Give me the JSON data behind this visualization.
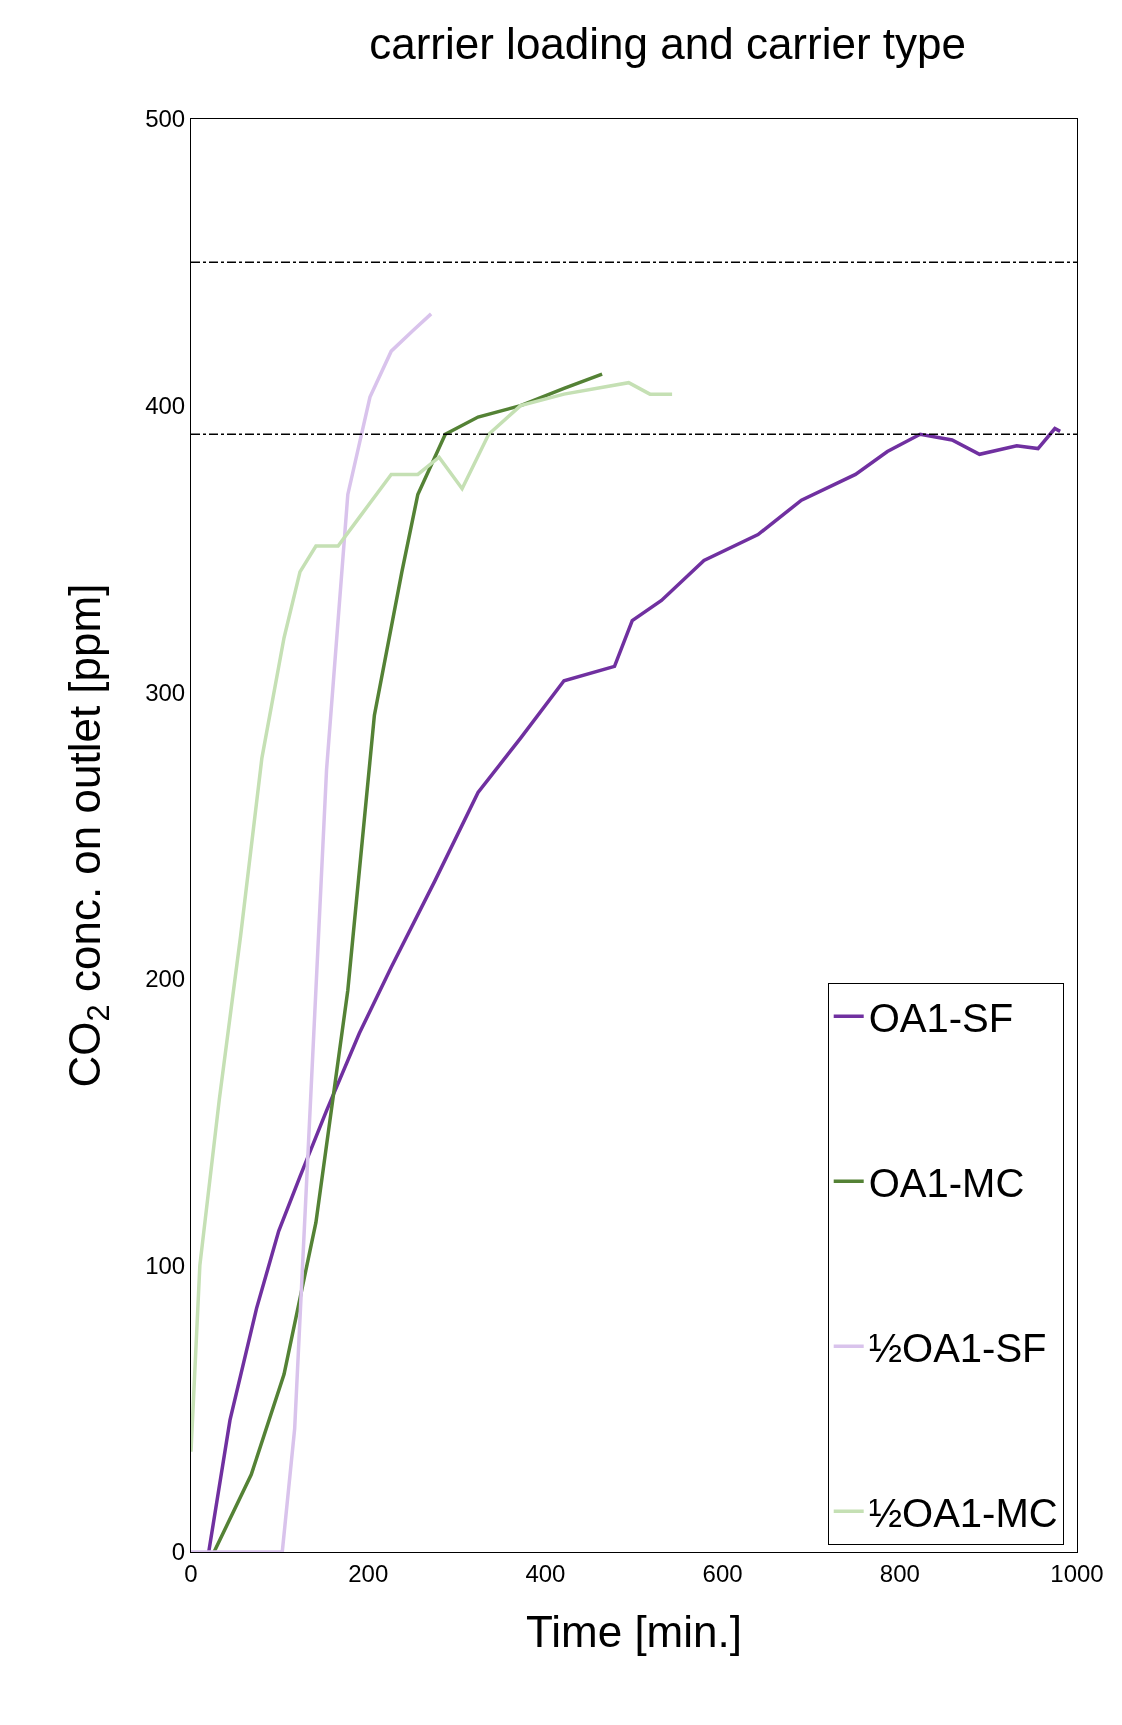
{
  "chart_data": {
    "type": "line",
    "title": "carrier loading and carrier type",
    "xlabel": "Time [min.]",
    "ylabel": "CO$_{2}$ conc. on outlet [ppm]",
    "xlim": [
      0,
      1000
    ],
    "xticks": [
      0,
      200,
      400,
      600,
      800,
      1000
    ],
    "ylim": [
      0,
      500
    ],
    "yticks": [
      0,
      100,
      200,
      300,
      400,
      500
    ],
    "grid": false,
    "legend": "bottom right",
    "marker": "none",
    "line_style": "solid",
    "ref_lines": [
      {
        "axis": "y",
        "value": 450,
        "color": "#000000",
        "line_style": "dashdot"
      },
      {
        "axis": "y",
        "value": 390,
        "color": "#000000",
        "line_style": "dashdot"
      }
    ],
    "series": [
      {
        "name": "OA1-SF",
        "color": "#7030a0",
        "x": [
          20,
          44,
          74,
          99,
          123,
          153,
          190,
          226,
          275,
          324,
          372,
          421,
          478,
          498,
          531,
          579,
          640,
          689,
          750,
          786,
          823,
          859,
          890,
          932,
          956,
          975,
          981
        ],
        "values": [
          0,
          46,
          85,
          112,
          131,
          154,
          181,
          204,
          234,
          265,
          284,
          304,
          309,
          325,
          332,
          346,
          355,
          367,
          376,
          384,
          390,
          388,
          383,
          386,
          385,
          392,
          391
        ]
      },
      {
        "name": "OA1-MC",
        "color": "#548235",
        "x": [
          26,
          68,
          105,
          141,
          177,
          207,
          238,
          256,
          287,
          324,
          372,
          421,
          464
        ],
        "values": [
          0,
          27,
          62,
          115,
          196,
          292,
          342,
          369,
          390,
          396,
          400,
          406,
          411
        ]
      },
      {
        "name": "½OA1-SF",
        "color": "#d9c3ec",
        "x": [
          0,
          103,
          117,
          135,
          153,
          177,
          202,
          226,
          250,
          271
        ],
        "values": [
          0,
          0,
          43,
          158,
          273,
          369,
          403,
          419,
          426,
          432
        ]
      },
      {
        "name": "½OA1-MC",
        "color": "#c5e0b4",
        "x": [
          0,
          10,
          32,
          56,
          80,
          105,
          123,
          141,
          166,
          190,
          226,
          256,
          280,
          306,
          336,
          372,
          421,
          494,
          518,
          543
        ],
        "values": [
          35,
          100,
          158,
          215,
          277,
          319,
          342,
          351,
          351,
          361,
          376,
          376,
          382,
          371,
          390,
          400,
          404,
          408,
          404,
          404
        ]
      }
    ]
  }
}
